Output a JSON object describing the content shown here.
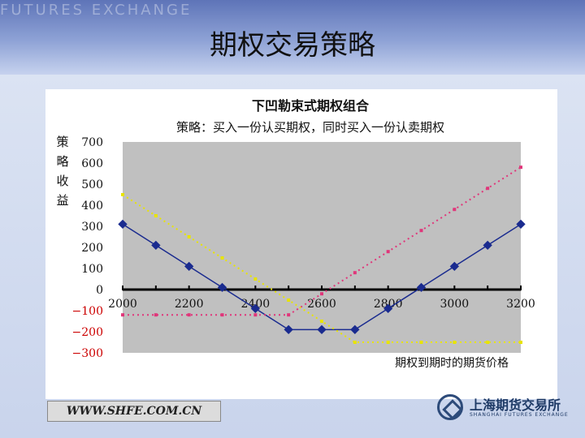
{
  "slide": {
    "title": "期权交易策略",
    "band_text": "FUTURES EXCHANGE",
    "footer_url": "WWW.SHFE.COM.CN",
    "logo_cn": "上海期货交易所",
    "logo_en": "SHANGHAI FUTURES EXCHANGE"
  },
  "chart_data": {
    "type": "line",
    "title": "下凹勒束式期权组合",
    "subtitle": "策略：买入一份认买期权，同时买入一份认卖期权",
    "ylabel": "策略收益",
    "xlabel": "期权到期时的期货价格",
    "xlim": [
      2000,
      3200
    ],
    "ylim": [
      -300,
      700
    ],
    "x_ticks": [
      "2000",
      "2200",
      "2400",
      "2600",
      "2800",
      "3000",
      "3200"
    ],
    "y_ticks": [
      "700",
      "600",
      "500",
      "400",
      "300",
      "200",
      "100",
      "0",
      "−100",
      "−200",
      "−300"
    ],
    "grid": false,
    "colors": {
      "plot_bg": "#c0c0c0",
      "combo": "#1a2b8f",
      "call": "#e0367a",
      "put": "#e8e400"
    },
    "x": [
      2000,
      2100,
      2200,
      2300,
      2400,
      2500,
      2600,
      2700,
      2800,
      2900,
      3000,
      3100,
      3200
    ],
    "series": [
      {
        "key": "combo",
        "values": [
          310,
          210,
          110,
          10,
          -90,
          -190,
          -190,
          -190,
          -90,
          10,
          110,
          210,
          310
        ]
      },
      {
        "key": "call",
        "values": [
          -120,
          -120,
          -120,
          -120,
          -120,
          -120,
          -20,
          80,
          180,
          280,
          380,
          480,
          580
        ]
      },
      {
        "key": "put",
        "values": [
          450,
          350,
          250,
          150,
          50,
          -50,
          -150,
          -250,
          -250,
          -250,
          -250,
          -250,
          -250
        ]
      }
    ]
  }
}
